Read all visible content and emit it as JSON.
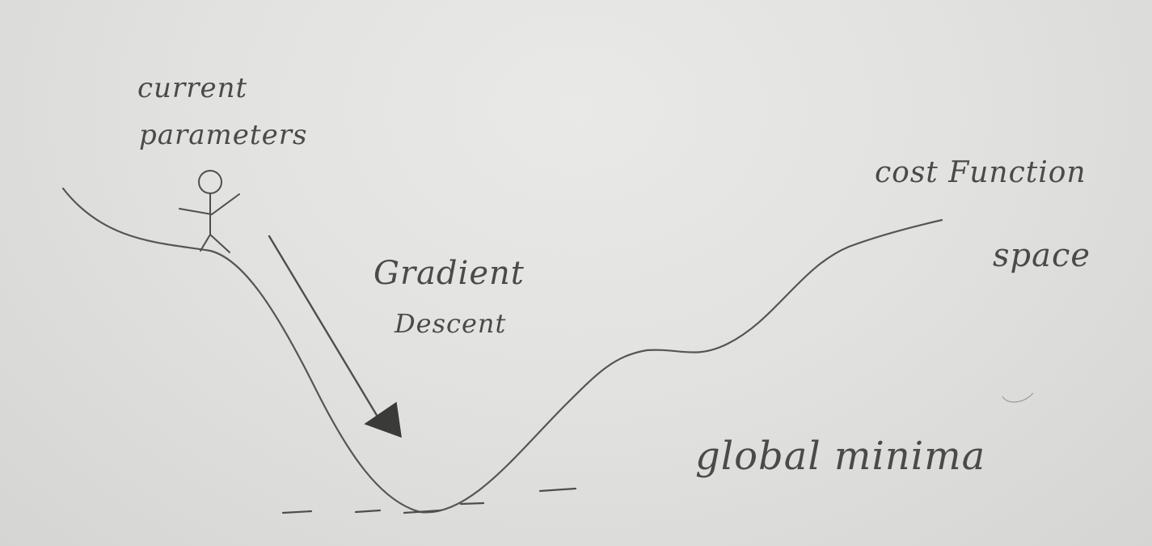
{
  "labels": {
    "current": "current",
    "parameters": "parameters",
    "gradient": "Gradient",
    "descent": "Descent",
    "cost_function": "cost Function",
    "space": "space",
    "global_minima": "global minima"
  },
  "colors": {
    "paper": "#e4e4e2",
    "pencil": "#555553",
    "pencil_dark": "#3a3a38"
  }
}
